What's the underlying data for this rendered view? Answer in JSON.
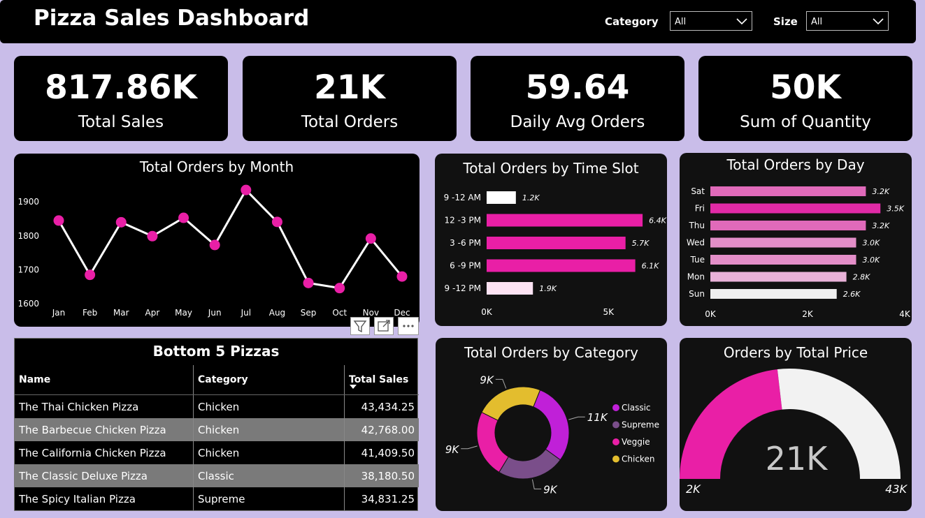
{
  "header": {
    "title": "Pizza Sales Dashboard",
    "filters": [
      {
        "label": "Category",
        "value": "All"
      },
      {
        "label": "Size",
        "value": "All"
      }
    ]
  },
  "kpis": [
    {
      "value": "817.86K",
      "label": "Total Sales"
    },
    {
      "value": "21K",
      "label": "Total Orders"
    },
    {
      "value": "59.64",
      "label": "Daily Avg Orders"
    },
    {
      "value": "50K",
      "label": "Sum of Quantity"
    }
  ],
  "colors": {
    "accent": "#e91fa6",
    "point": "#e91fa6",
    "classic": "#c020d8",
    "supreme": "#7a4e8a",
    "veggie": "#e91fa6",
    "chicken": "#e3bd2e",
    "gauge_fill": "#e91fa6",
    "gauge_rest": "#f2f2f2"
  },
  "chart_data": [
    {
      "type": "line",
      "title": "Total Orders by Month",
      "categories": [
        "Jan",
        "Feb",
        "Mar",
        "Apr",
        "May",
        "Jun",
        "Jul",
        "Aug",
        "Sep",
        "Oct",
        "Nov",
        "Dec"
      ],
      "values": [
        1845,
        1685,
        1840,
        1799,
        1853,
        1773,
        1935,
        1841,
        1661,
        1646,
        1792,
        1680
      ],
      "ylim": [
        1600,
        1960
      ],
      "yticks": [
        "1600",
        "1700",
        "1800",
        "1900"
      ],
      "ytick_values": [
        1600,
        1700,
        1800,
        1900
      ]
    },
    {
      "type": "bar",
      "title": "Total Orders by Time Slot",
      "categories": [
        "9 -12 AM",
        "12 -3 PM",
        "3 -6 PM",
        "6 -9 PM",
        "9 -12 PM"
      ],
      "values": [
        1200,
        6400,
        5700,
        6100,
        1900
      ],
      "labels": [
        "1.2K",
        "6.4K",
        "5.7K",
        "6.1K",
        "1.9K"
      ],
      "colors": [
        "#ffffff",
        "#e91fa6",
        "#e91fa6",
        "#e91fa6",
        "#fde3f3"
      ],
      "xlim": [
        0,
        7000
      ],
      "xticks": [
        "0K",
        "5K"
      ],
      "xtick_values": [
        0,
        5000
      ]
    },
    {
      "type": "bar",
      "title": "Total Orders by Day",
      "categories": [
        "Sat",
        "Fri",
        "Thu",
        "Wed",
        "Tue",
        "Mon",
        "Sun"
      ],
      "values": [
        3200,
        3500,
        3200,
        3000,
        3000,
        2800,
        2600
      ],
      "labels": [
        "3.2K",
        "3.5K",
        "3.2K",
        "3.0K",
        "3.0K",
        "2.8K",
        "2.6K"
      ],
      "colors": [
        "#e06aba",
        "#e02aa6",
        "#e06aba",
        "#e38ec8",
        "#e38ec8",
        "#e8b2d8",
        "#eeeeee"
      ],
      "xlim": [
        0,
        4000
      ],
      "xticks": [
        "0K",
        "2K",
        "4K"
      ],
      "xtick_values": [
        0,
        2000,
        4000
      ]
    },
    {
      "type": "table",
      "title": "Bottom 5 Pizzas",
      "columns": [
        "Name",
        "Category",
        "Total Sales"
      ],
      "rows": [
        [
          "The Thai Chicken Pizza",
          "Chicken",
          "43,434.25"
        ],
        [
          "The Barbecue Chicken Pizza",
          "Chicken",
          "42,768.00"
        ],
        [
          "The California Chicken Pizza",
          "Chicken",
          "41,409.50"
        ],
        [
          "The Classic Deluxe Pizza",
          "Classic",
          "38,180.50"
        ],
        [
          "The Spicy Italian Pizza",
          "Supreme",
          "34,831.25"
        ]
      ]
    },
    {
      "type": "pie",
      "title": "Total Orders by Category",
      "categories": [
        "Classic",
        "Supreme",
        "Veggie",
        "Chicken"
      ],
      "values": [
        11,
        9,
        9,
        9
      ],
      "labels": [
        "11K",
        "9K",
        "9K",
        "9K"
      ]
    },
    {
      "type": "gauge",
      "title": "Orders by Total Price",
      "value": 21,
      "min": 2,
      "max": 43,
      "value_label": "21K",
      "min_label": "2K",
      "max_label": "43K"
    }
  ]
}
